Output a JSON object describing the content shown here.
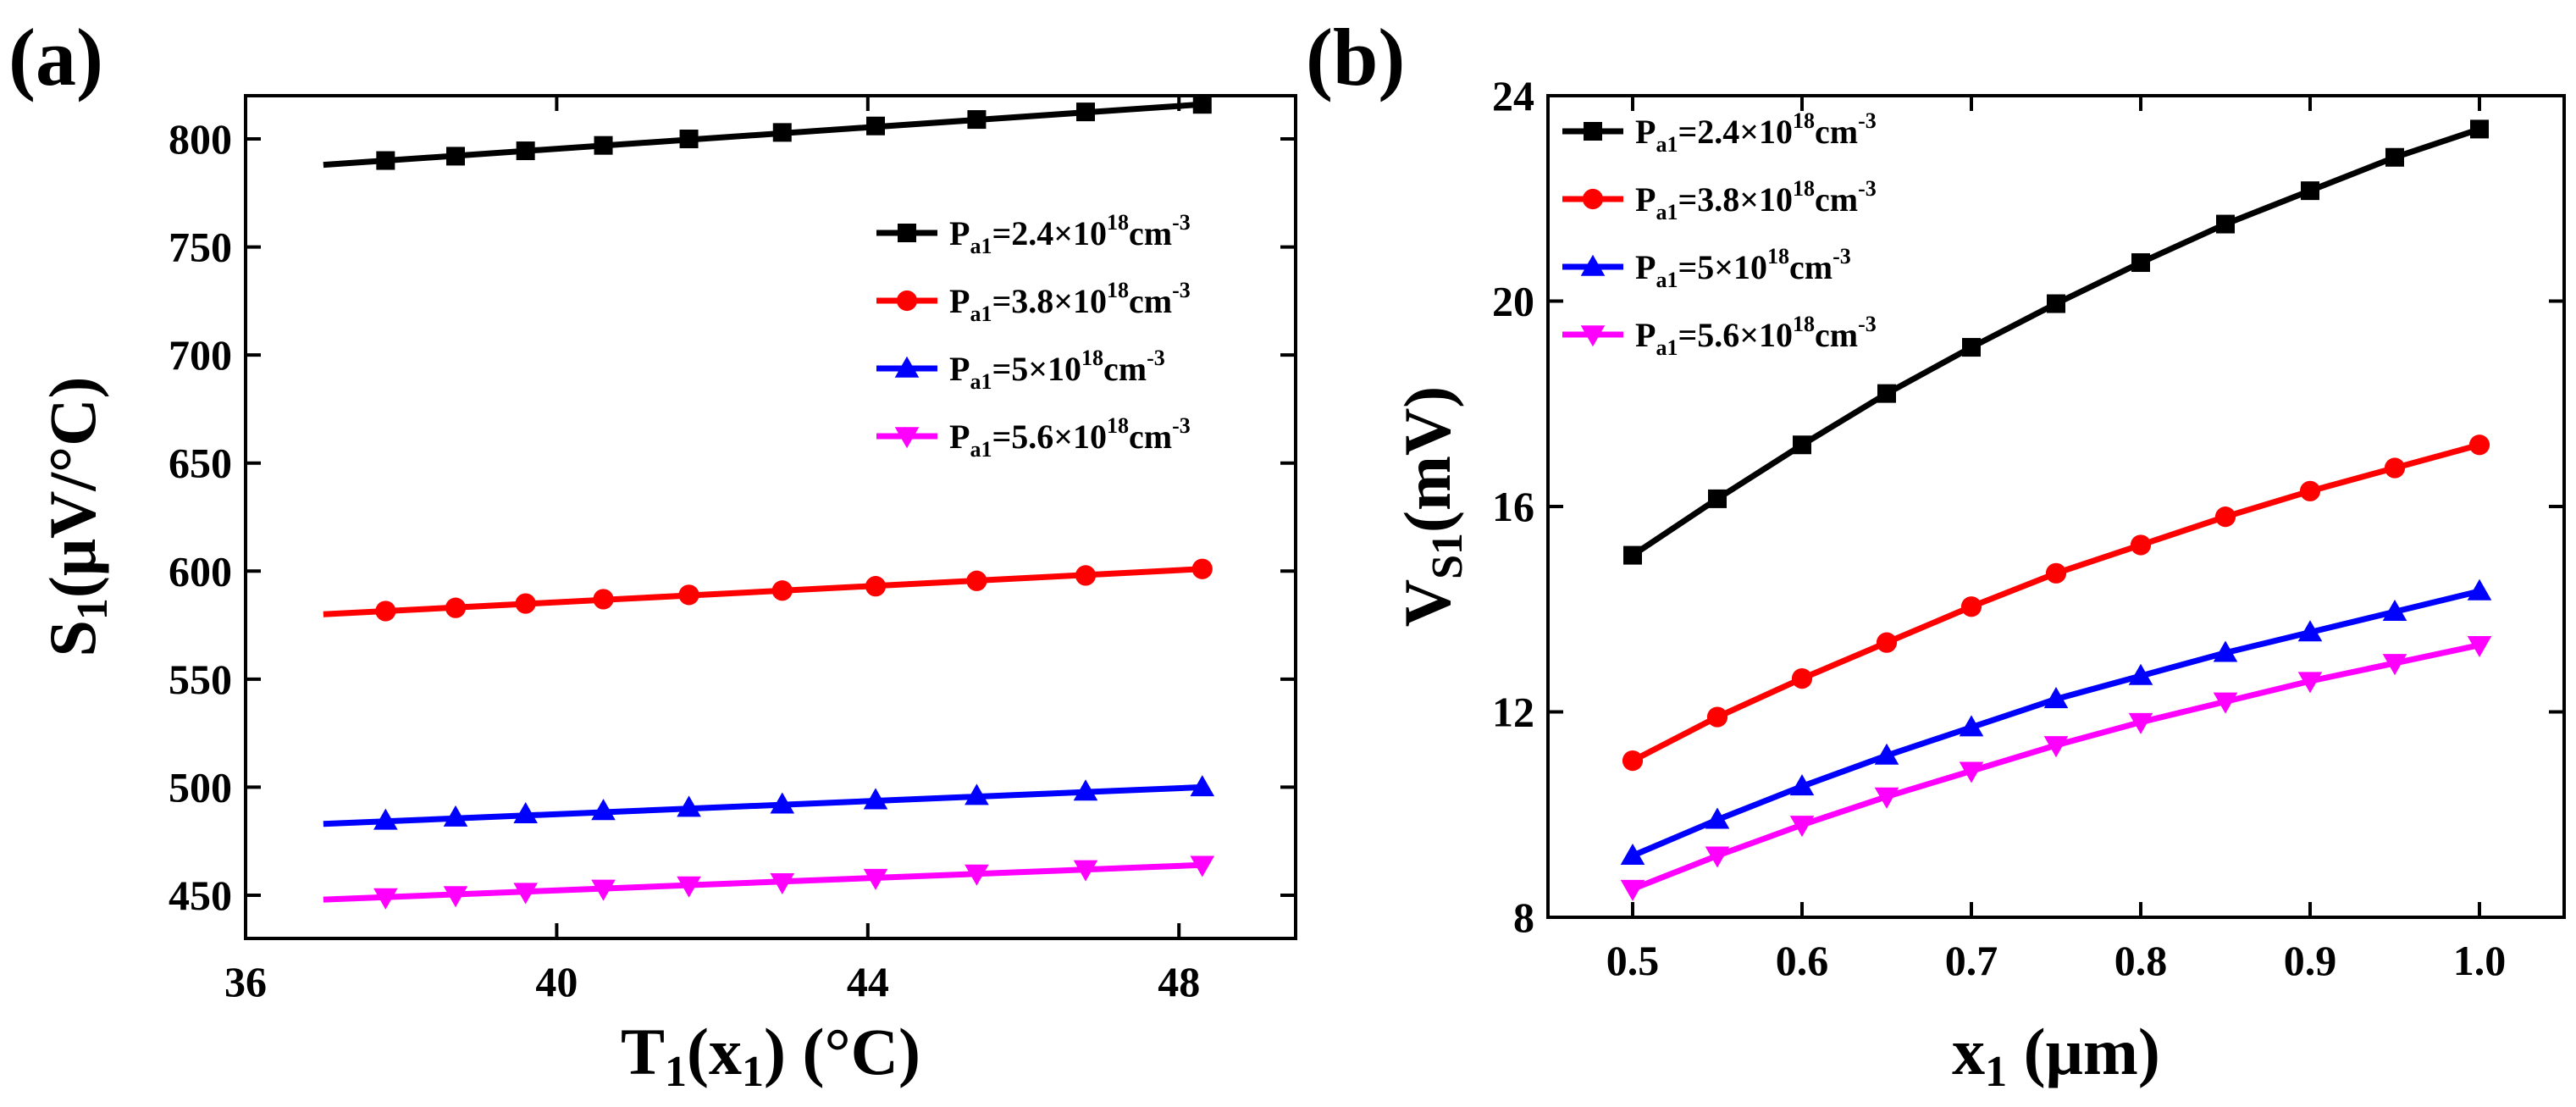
{
  "panels": [
    {
      "label": "(a)",
      "xlabel": {
        "main": "T",
        "sub1": "1",
        "mid": "(x",
        "sub2": "1",
        "end": ") (°C)"
      },
      "ylabel": {
        "main": "S",
        "sub": "1",
        "end": "(μV/°C)"
      },
      "xlim": [
        36,
        49.5
      ],
      "ylim": [
        430,
        820
      ],
      "xticks": [
        36,
        40,
        44,
        48
      ],
      "xtick_labels": [
        "36",
        "40",
        "44",
        "48"
      ],
      "yticks": [
        450,
        500,
        550,
        600,
        650,
        700,
        750,
        800
      ],
      "ytick_labels": [
        "450",
        "500",
        "550",
        "600",
        "650",
        "700",
        "750",
        "800"
      ]
    },
    {
      "label": "(b)",
      "xlabel": {
        "main": "x",
        "sub": "1",
        "end": " (μm)"
      },
      "ylabel": {
        "main": "V",
        "sub": "S1",
        "end": "(mV)"
      },
      "xlim": [
        0.45,
        1.05
      ],
      "ylim": [
        8,
        24
      ],
      "xticks": [
        0.5,
        0.6,
        0.7,
        0.8,
        0.9,
        1.0
      ],
      "xtick_labels": [
        "0.5",
        "0.6",
        "0.7",
        "0.8",
        "0.9",
        "1.0"
      ],
      "yticks": [
        8,
        12,
        16,
        20,
        24
      ],
      "ytick_labels": [
        "8",
        "12",
        "16",
        "20",
        "24"
      ]
    }
  ],
  "legend": [
    {
      "P": "P",
      "sub": "a1",
      "eq": "=2.4×10",
      "sup1": "18",
      "unit": "cm",
      "sup2": "-3",
      "color": "#000000",
      "marker": "square"
    },
    {
      "P": "P",
      "sub": "a1",
      "eq": "=3.8×10",
      "sup1": "18",
      "unit": "cm",
      "sup2": "-3",
      "color": "#ff0000",
      "marker": "circle"
    },
    {
      "P": "P",
      "sub": "a1",
      "eq": "=5×10",
      "sup1": "18",
      "unit": "cm",
      "sup2": "-3",
      "color": "#0000ff",
      "marker": "triangle-up"
    },
    {
      "P": "P",
      "sub": "a1",
      "eq": "=5.6×10",
      "sup1": "18",
      "unit": "cm",
      "sup2": "-3",
      "color": "#ff00ff",
      "marker": "triangle-down"
    }
  ],
  "chart_data": [
    {
      "type": "line",
      "title": "(a)",
      "xlabel": "T1(x1) (°C)",
      "ylabel": "S1(μV/°C)",
      "xlim": [
        36,
        49.5
      ],
      "ylim": [
        430,
        820
      ],
      "legend_position": "right",
      "series": [
        {
          "name": "Pa1=2.4×10^18cm^-3",
          "line_x": [
            37,
            48.3
          ],
          "line_y": [
            788,
            816
          ],
          "x": [
            37.8,
            38.7,
            39.6,
            40.6,
            41.7,
            42.9,
            44.1,
            45.4,
            46.8,
            48.3
          ],
          "y": [
            790,
            792,
            794.5,
            797,
            800,
            803,
            806,
            809,
            812.5,
            816
          ]
        },
        {
          "name": "Pa1=3.8×10^18cm^-3",
          "line_x": [
            37,
            48.3
          ],
          "line_y": [
            580,
            601
          ],
          "x": [
            37.8,
            38.7,
            39.6,
            40.6,
            41.7,
            42.9,
            44.1,
            45.4,
            46.8,
            48.3
          ],
          "y": [
            581.5,
            583,
            585,
            587,
            589,
            591,
            593,
            595.5,
            598,
            601
          ]
        },
        {
          "name": "Pa1=5×10^18cm^-3",
          "line_x": [
            37,
            48.3
          ],
          "line_y": [
            483,
            500
          ],
          "x": [
            37.8,
            38.7,
            39.6,
            40.6,
            41.7,
            42.9,
            44.1,
            45.4,
            46.8,
            48.3
          ],
          "y": [
            484.5,
            486,
            487.5,
            489,
            490.5,
            492,
            494,
            496,
            498,
            500
          ]
        },
        {
          "name": "Pa1=5.6×10^18cm^-3",
          "line_x": [
            37,
            48.3
          ],
          "line_y": [
            448,
            464
          ],
          "x": [
            37.8,
            38.7,
            39.6,
            40.6,
            41.7,
            42.9,
            44.1,
            45.4,
            46.8,
            48.3
          ],
          "y": [
            449,
            450,
            451.5,
            453,
            454.5,
            456,
            458,
            460,
            462,
            464
          ]
        }
      ]
    },
    {
      "type": "line",
      "title": "(b)",
      "xlabel": "x1 (μm)",
      "ylabel": "VS1(mV)",
      "xlim": [
        0.45,
        1.05
      ],
      "ylim": [
        8,
        24
      ],
      "legend_position": "top-left",
      "series": [
        {
          "name": "Pa1=2.4×10^18cm^-3",
          "x": [
            0.5,
            0.55,
            0.6,
            0.65,
            0.7,
            0.75,
            0.8,
            0.85,
            0.9,
            0.95,
            1.0
          ],
          "y": [
            15.05,
            16.15,
            17.2,
            18.2,
            19.1,
            19.95,
            20.75,
            21.5,
            22.15,
            22.8,
            23.35
          ]
        },
        {
          "name": "Pa1=3.8×10^18cm^-3",
          "x": [
            0.5,
            0.55,
            0.6,
            0.65,
            0.7,
            0.75,
            0.8,
            0.85,
            0.9,
            0.95,
            1.0
          ],
          "y": [
            11.05,
            11.9,
            12.65,
            13.35,
            14.05,
            14.7,
            15.25,
            15.8,
            16.3,
            16.75,
            17.2
          ]
        },
        {
          "name": "Pa1=5×10^18cm^-3",
          "x": [
            0.5,
            0.55,
            0.6,
            0.65,
            0.7,
            0.75,
            0.8,
            0.85,
            0.9,
            0.95,
            1.0
          ],
          "y": [
            9.2,
            9.9,
            10.55,
            11.15,
            11.7,
            12.25,
            12.7,
            13.15,
            13.55,
            13.95,
            14.35
          ]
        },
        {
          "name": "Pa1=5.6×10^18cm^-3",
          "x": [
            0.5,
            0.55,
            0.6,
            0.65,
            0.7,
            0.75,
            0.8,
            0.85,
            0.9,
            0.95,
            1.0
          ],
          "y": [
            8.55,
            9.2,
            9.8,
            10.35,
            10.85,
            11.35,
            11.8,
            12.2,
            12.6,
            12.95,
            13.3
          ]
        }
      ]
    }
  ]
}
